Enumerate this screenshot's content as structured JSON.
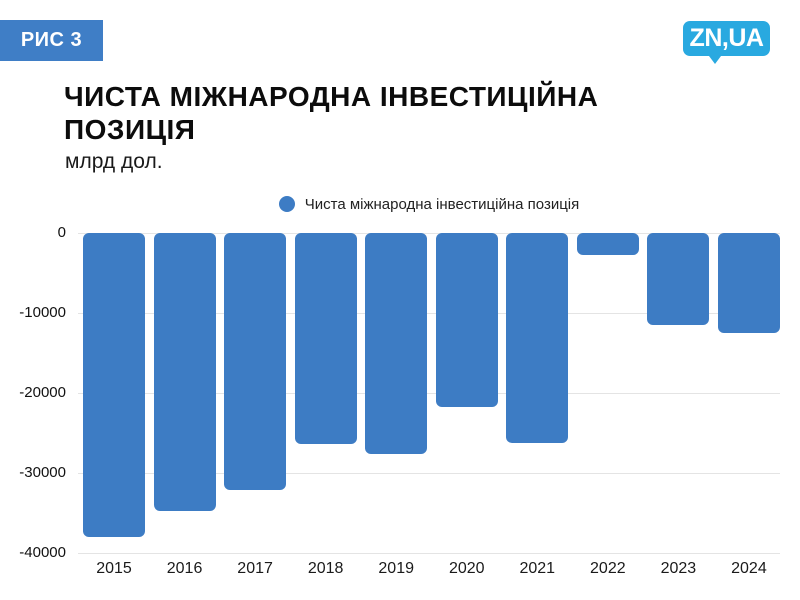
{
  "badge": {
    "label": "РИС 3",
    "bg_color": "#3f7ec6"
  },
  "logo": {
    "text": "ZN,UA",
    "bg_color": "#29a9e0"
  },
  "header": {
    "title": "ЧИСТА МІЖНАРОДНА ІНВЕСТИЦІЙНА ПОЗИЦІЯ",
    "subtitle": "млрд дол."
  },
  "legend": {
    "label": "Чиста міжнародна інвестиційна позиція",
    "marker_color": "#3d7cc4"
  },
  "chart_data": {
    "type": "bar",
    "title": "ЧИСТА МІЖНАРОДНА ІНВЕСТИЦІЙНА ПОЗИЦІЯ",
    "unit_label": "млрд дол.",
    "series_name": "Чиста міжнародна інвестиційна позиція",
    "categories": [
      "2015",
      "2016",
      "2017",
      "2018",
      "2019",
      "2020",
      "2021",
      "2022",
      "2023",
      "2024"
    ],
    "values": [
      -38000,
      -34800,
      -32100,
      -26400,
      -27600,
      -21800,
      -26300,
      -2700,
      -11500,
      -12500
    ],
    "ylim": [
      -40000,
      0
    ],
    "yticks": [
      0,
      -10000,
      -20000,
      -30000,
      -40000
    ],
    "grid": true,
    "legend_position": "top-center",
    "bar_color": "#3d7cc4",
    "gridline_color": "#e4e4e4"
  }
}
